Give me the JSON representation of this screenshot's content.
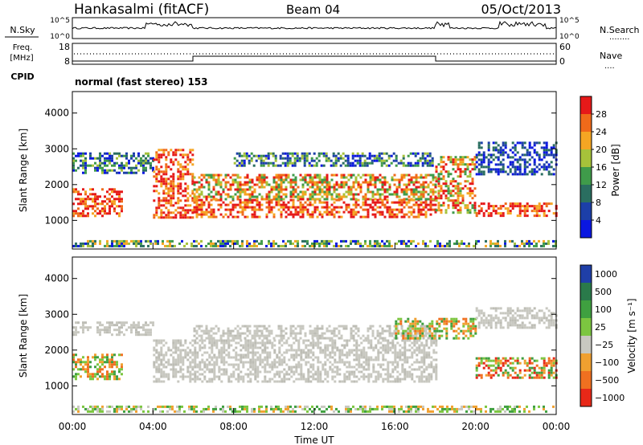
{
  "header": {
    "station": "Hankasalmi (fitACF)",
    "beam": "Beam 04",
    "date": "05/Oct/2013"
  },
  "summary_panels": {
    "nsky_label": "N.Sky",
    "nsearch_label": "N.Search",
    "nsearch_marker": "........",
    "freq_label_1": "Freq.",
    "freq_label_2": "[MHz]",
    "nave_label": "Nave",
    "nave_marker": "....",
    "cpid_label": "CPID",
    "cpid_text": "normal (fast stereo) 153",
    "left_ticks_top": [
      "10^5",
      "10^0"
    ],
    "right_ticks_top": [
      "10^5",
      "10^0"
    ],
    "left_ticks_freq": [
      "18",
      "8"
    ],
    "right_ticks_nave": [
      "60",
      "0"
    ]
  },
  "chart_data": [
    {
      "type": "heatmap",
      "title": "",
      "xlabel": "",
      "ylabel": "Slant Range [km]",
      "xlim": [
        0,
        24
      ],
      "ylim": [
        200,
        4600
      ],
      "x_tick_labels": [
        "00:00",
        "04:00",
        "08:00",
        "12:00",
        "16:00",
        "20:00",
        "00:00"
      ],
      "y_ticks": [
        1000,
        2000,
        3000,
        4000
      ],
      "colorbar": {
        "label": "Power [dB]",
        "ticks": [
          4,
          8,
          12,
          16,
          20,
          24,
          28
        ],
        "range": [
          0,
          32
        ],
        "colors": [
          "#0a17e0",
          "#1c3fa8",
          "#2a6e60",
          "#3f9b4a",
          "#a6c23a",
          "#f5a623",
          "#f06a1a",
          "#e61919"
        ]
      },
      "bands": [
        {
          "x": [
            0,
            24
          ],
          "y": [
            250,
            450
          ],
          "level": "scatter"
        },
        {
          "x": [
            0,
            2.5
          ],
          "y": [
            1100,
            1900
          ],
          "level": "high"
        },
        {
          "x": [
            0,
            4
          ],
          "y": [
            2300,
            2900
          ],
          "level": "mid"
        },
        {
          "x": [
            4,
            6
          ],
          "y": [
            1100,
            3000
          ],
          "level": "high"
        },
        {
          "x": [
            6,
            18
          ],
          "y": [
            1100,
            1600
          ],
          "level": "high"
        },
        {
          "x": [
            6,
            18
          ],
          "y": [
            1600,
            2300
          ],
          "level": "upper"
        },
        {
          "x": [
            8,
            18
          ],
          "y": [
            2500,
            2900
          ],
          "level": "mid"
        },
        {
          "x": [
            18,
            20
          ],
          "y": [
            1200,
            2800
          ],
          "level": "upper"
        },
        {
          "x": [
            20,
            24
          ],
          "y": [
            1150,
            1500
          ],
          "level": "high"
        },
        {
          "x": [
            20,
            24
          ],
          "y": [
            2300,
            3200
          ],
          "level": "low"
        }
      ]
    },
    {
      "type": "heatmap",
      "title": "",
      "xlabel": "Time UT",
      "ylabel": "Slant Range [km]",
      "xlim": [
        0,
        24
      ],
      "ylim": [
        200,
        4600
      ],
      "x_tick_labels": [
        "00:00",
        "04:00",
        "08:00",
        "12:00",
        "16:00",
        "20:00",
        "00:00"
      ],
      "y_ticks": [
        1000,
        2000,
        3000,
        4000
      ],
      "colorbar": {
        "label": "Velocity [m s⁻¹]",
        "ticks": [
          "1000",
          "500",
          "100",
          "25",
          "−25",
          "−100",
          "−500",
          "−1000"
        ],
        "colors": [
          "#1f3fa8",
          "#2a7a4a",
          "#3fa040",
          "#7cc640",
          "#c8c8c0",
          "#f0a030",
          "#f07020",
          "#e82818"
        ]
      },
      "bands": [
        {
          "x": [
            0,
            24
          ],
          "y": [
            250,
            450
          ],
          "level": "scatter"
        },
        {
          "x": [
            0,
            4
          ],
          "y": [
            2400,
            2800
          ],
          "level": "gray"
        },
        {
          "x": [
            0,
            2.5
          ],
          "y": [
            1200,
            1900
          ],
          "level": "orange"
        },
        {
          "x": [
            4,
            18
          ],
          "y": [
            1100,
            2300
          ],
          "level": "gray"
        },
        {
          "x": [
            6,
            18
          ],
          "y": [
            2300,
            2700
          ],
          "level": "gray"
        },
        {
          "x": [
            16,
            20
          ],
          "y": [
            2300,
            2900
          ],
          "level": "orange"
        },
        {
          "x": [
            20,
            24
          ],
          "y": [
            1200,
            1800
          ],
          "level": "mix"
        },
        {
          "x": [
            20,
            24
          ],
          "y": [
            2600,
            3200
          ],
          "level": "gray"
        }
      ]
    }
  ]
}
